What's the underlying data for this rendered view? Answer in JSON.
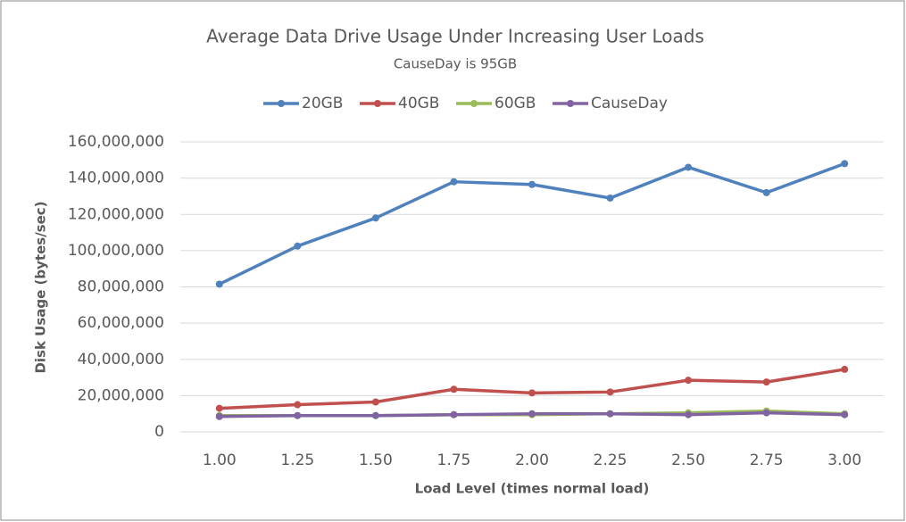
{
  "chart_data": {
    "type": "line",
    "title": "Average Data Drive Usage Under Increasing User Loads",
    "subtitle": "CauseDay is 95GB",
    "x_label": "Load Level (times normal load)",
    "y_label": "Disk Usage (bytes/sec)",
    "categories": [
      "1.00",
      "1.25",
      "1.50",
      "1.75",
      "2.00",
      "2.25",
      "2.50",
      "2.75",
      "3.00"
    ],
    "series": [
      {
        "name": "20GB",
        "color": "#4f81bd",
        "values": [
          81500000,
          102500000,
          118000000,
          138000000,
          136500000,
          129000000,
          146000000,
          132000000,
          148000000
        ]
      },
      {
        "name": "40GB",
        "color": "#c0504d",
        "values": [
          13000000,
          15000000,
          16500000,
          23500000,
          21500000,
          22000000,
          28500000,
          27500000,
          34500000
        ]
      },
      {
        "name": "60GB",
        "color": "#9bbb59",
        "values": [
          9000000,
          9000000,
          9000000,
          9500000,
          9500000,
          10000000,
          10500000,
          11500000,
          10000000
        ]
      },
      {
        "name": "CauseDay",
        "color": "#8064a2",
        "values": [
          8500000,
          9000000,
          9000000,
          9500000,
          10000000,
          10000000,
          9500000,
          10500000,
          9500000
        ]
      }
    ],
    "ylim": [
      0,
      160000000
    ],
    "yticks": [
      0,
      {
        "value": 20000000,
        "label": "20,000,000"
      },
      {
        "value": 40000000,
        "label": "40,000,000"
      },
      {
        "value": 60000000,
        "label": "60,000,000"
      },
      {
        "value": 80000000,
        "label": "80,000,000"
      },
      {
        "value": 100000000,
        "label": "100,000,000"
      },
      {
        "value": 120000000,
        "label": "120,000,000"
      },
      {
        "value": 140000000,
        "label": "140,000,000"
      },
      {
        "value": 160000000,
        "label": "160,000,000"
      }
    ],
    "grid": true,
    "legend": "top"
  }
}
